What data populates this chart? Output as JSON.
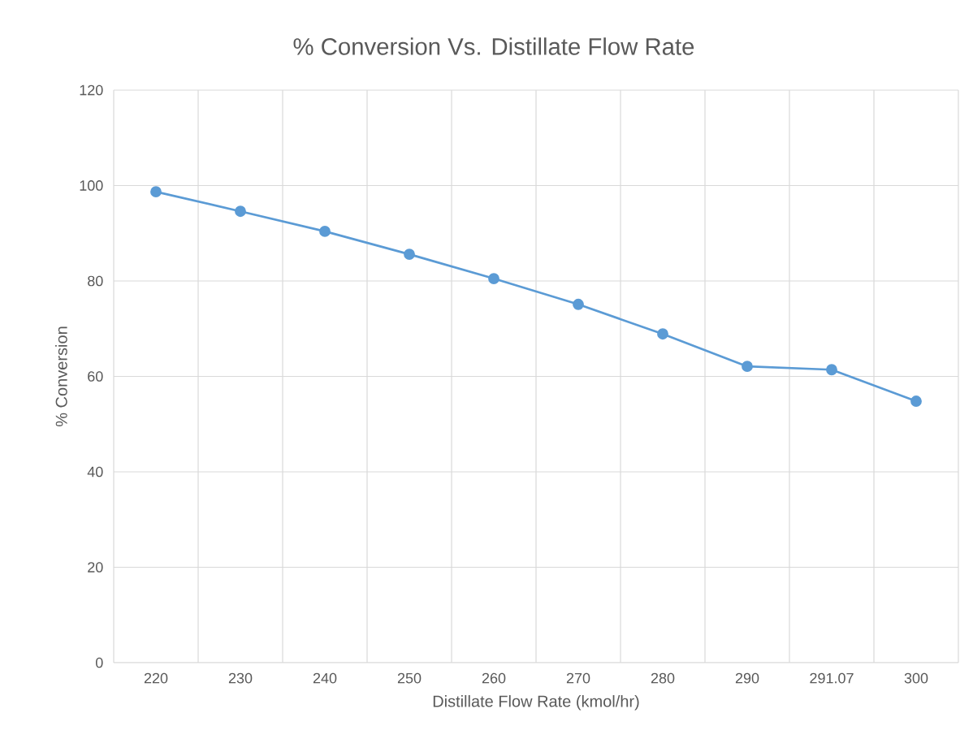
{
  "chart_data": {
    "type": "line",
    "title": "% Conversion Vs. Distillate Flow Rate",
    "xlabel": "Distillate Flow Rate (kmol/hr)",
    "ylabel": "% Conversion",
    "categories": [
      "220",
      "230",
      "240",
      "250",
      "260",
      "270",
      "280",
      "290",
      "291.07",
      "300"
    ],
    "series": [
      {
        "color": "#5b9bd5",
        "values": [
          98.7,
          94.6,
          90.4,
          85.6,
          80.5,
          75.1,
          68.9,
          62.1,
          61.4,
          54.8
        ]
      }
    ],
    "ylim": [
      0,
      120
    ],
    "yticks": [
      0,
      20,
      40,
      60,
      80,
      100,
      120
    ],
    "grid": true,
    "marker": "circle",
    "line_style": "solid"
  }
}
